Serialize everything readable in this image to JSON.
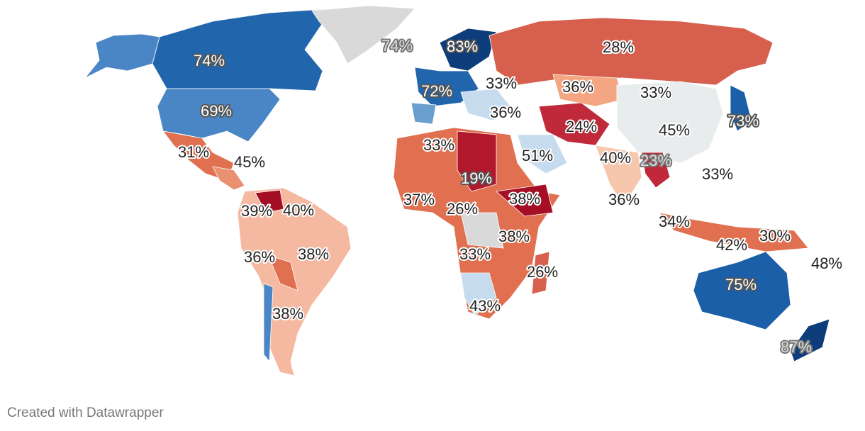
{
  "map": {
    "labels": [
      "74%",
      "74%",
      "83%",
      "28%",
      "72%",
      "33%",
      "36%",
      "33%",
      "36%",
      "69%",
      "73%",
      "24%",
      "45%",
      "31%",
      "45%",
      "33%",
      "51%",
      "40%",
      "23%",
      "33%",
      "19%",
      "37%",
      "38%",
      "36%",
      "26%",
      "39%",
      "40%",
      "34%",
      "38%",
      "30%",
      "42%",
      "36%",
      "38%",
      "33%",
      "26%",
      "48%",
      "75%",
      "38%",
      "43%",
      "87%"
    ]
  },
  "footer": "Created with Datawrapper"
}
